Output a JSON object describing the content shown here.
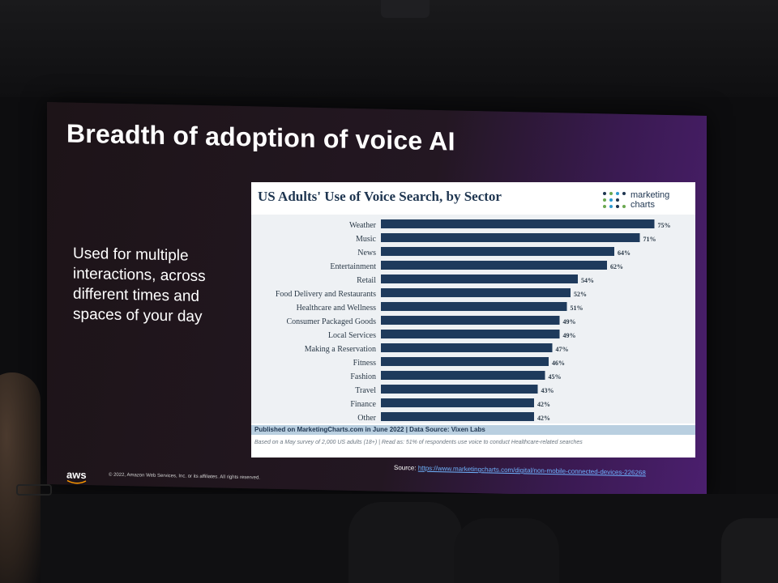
{
  "slide": {
    "title": "Breadth of adoption of voice AI",
    "side_lines": [
      "Used for multiple",
      "interactions, across",
      "different times and",
      "spaces of your day"
    ],
    "source_label": "Source:",
    "source_link": "https://www.marketingcharts.com/digital/non-mobile-connected-devices-226268",
    "aws_logo": "aws",
    "copyright": "© 2022, Amazon Web Services, Inc. or its affiliates. All rights reserved."
  },
  "logo": {
    "line1": "marketing",
    "line2": "charts",
    "dot_colors": [
      "#1e3550",
      "#6aa84f",
      "#2e9ad0"
    ]
  },
  "chart_data": {
    "type": "bar",
    "orientation": "horizontal",
    "title": "US Adults' Use of Voice Search, by Sector",
    "categories": [
      "Weather",
      "Music",
      "News",
      "Entertainment",
      "Retail",
      "Food Delivery and Restaurants",
      "Healthcare and Wellness",
      "Consumer Packaged Goods",
      "Local Services",
      "Making a Reservation",
      "Fitness",
      "Fashion",
      "Travel",
      "Finance",
      "Other"
    ],
    "values": [
      75,
      71,
      64,
      62,
      54,
      52,
      51,
      49,
      49,
      47,
      46,
      45,
      43,
      42,
      42
    ],
    "value_labels": [
      "75%",
      "71%",
      "64%",
      "62%",
      "54%",
      "52%",
      "51%",
      "49%",
      "49%",
      "47%",
      "46%",
      "45%",
      "43%",
      "42%",
      "42%"
    ],
    "xlim": [
      0,
      80
    ],
    "bar_color": "#1e3a5c",
    "grid": false,
    "published": "Published on MarketingCharts.com in June 2022 | Data Source: Vixen Labs",
    "footnote": "Based on a May survey of 2,000 US adults (18+) | Read as: 51% of respondents use voice to conduct Healthcare-related searches"
  }
}
